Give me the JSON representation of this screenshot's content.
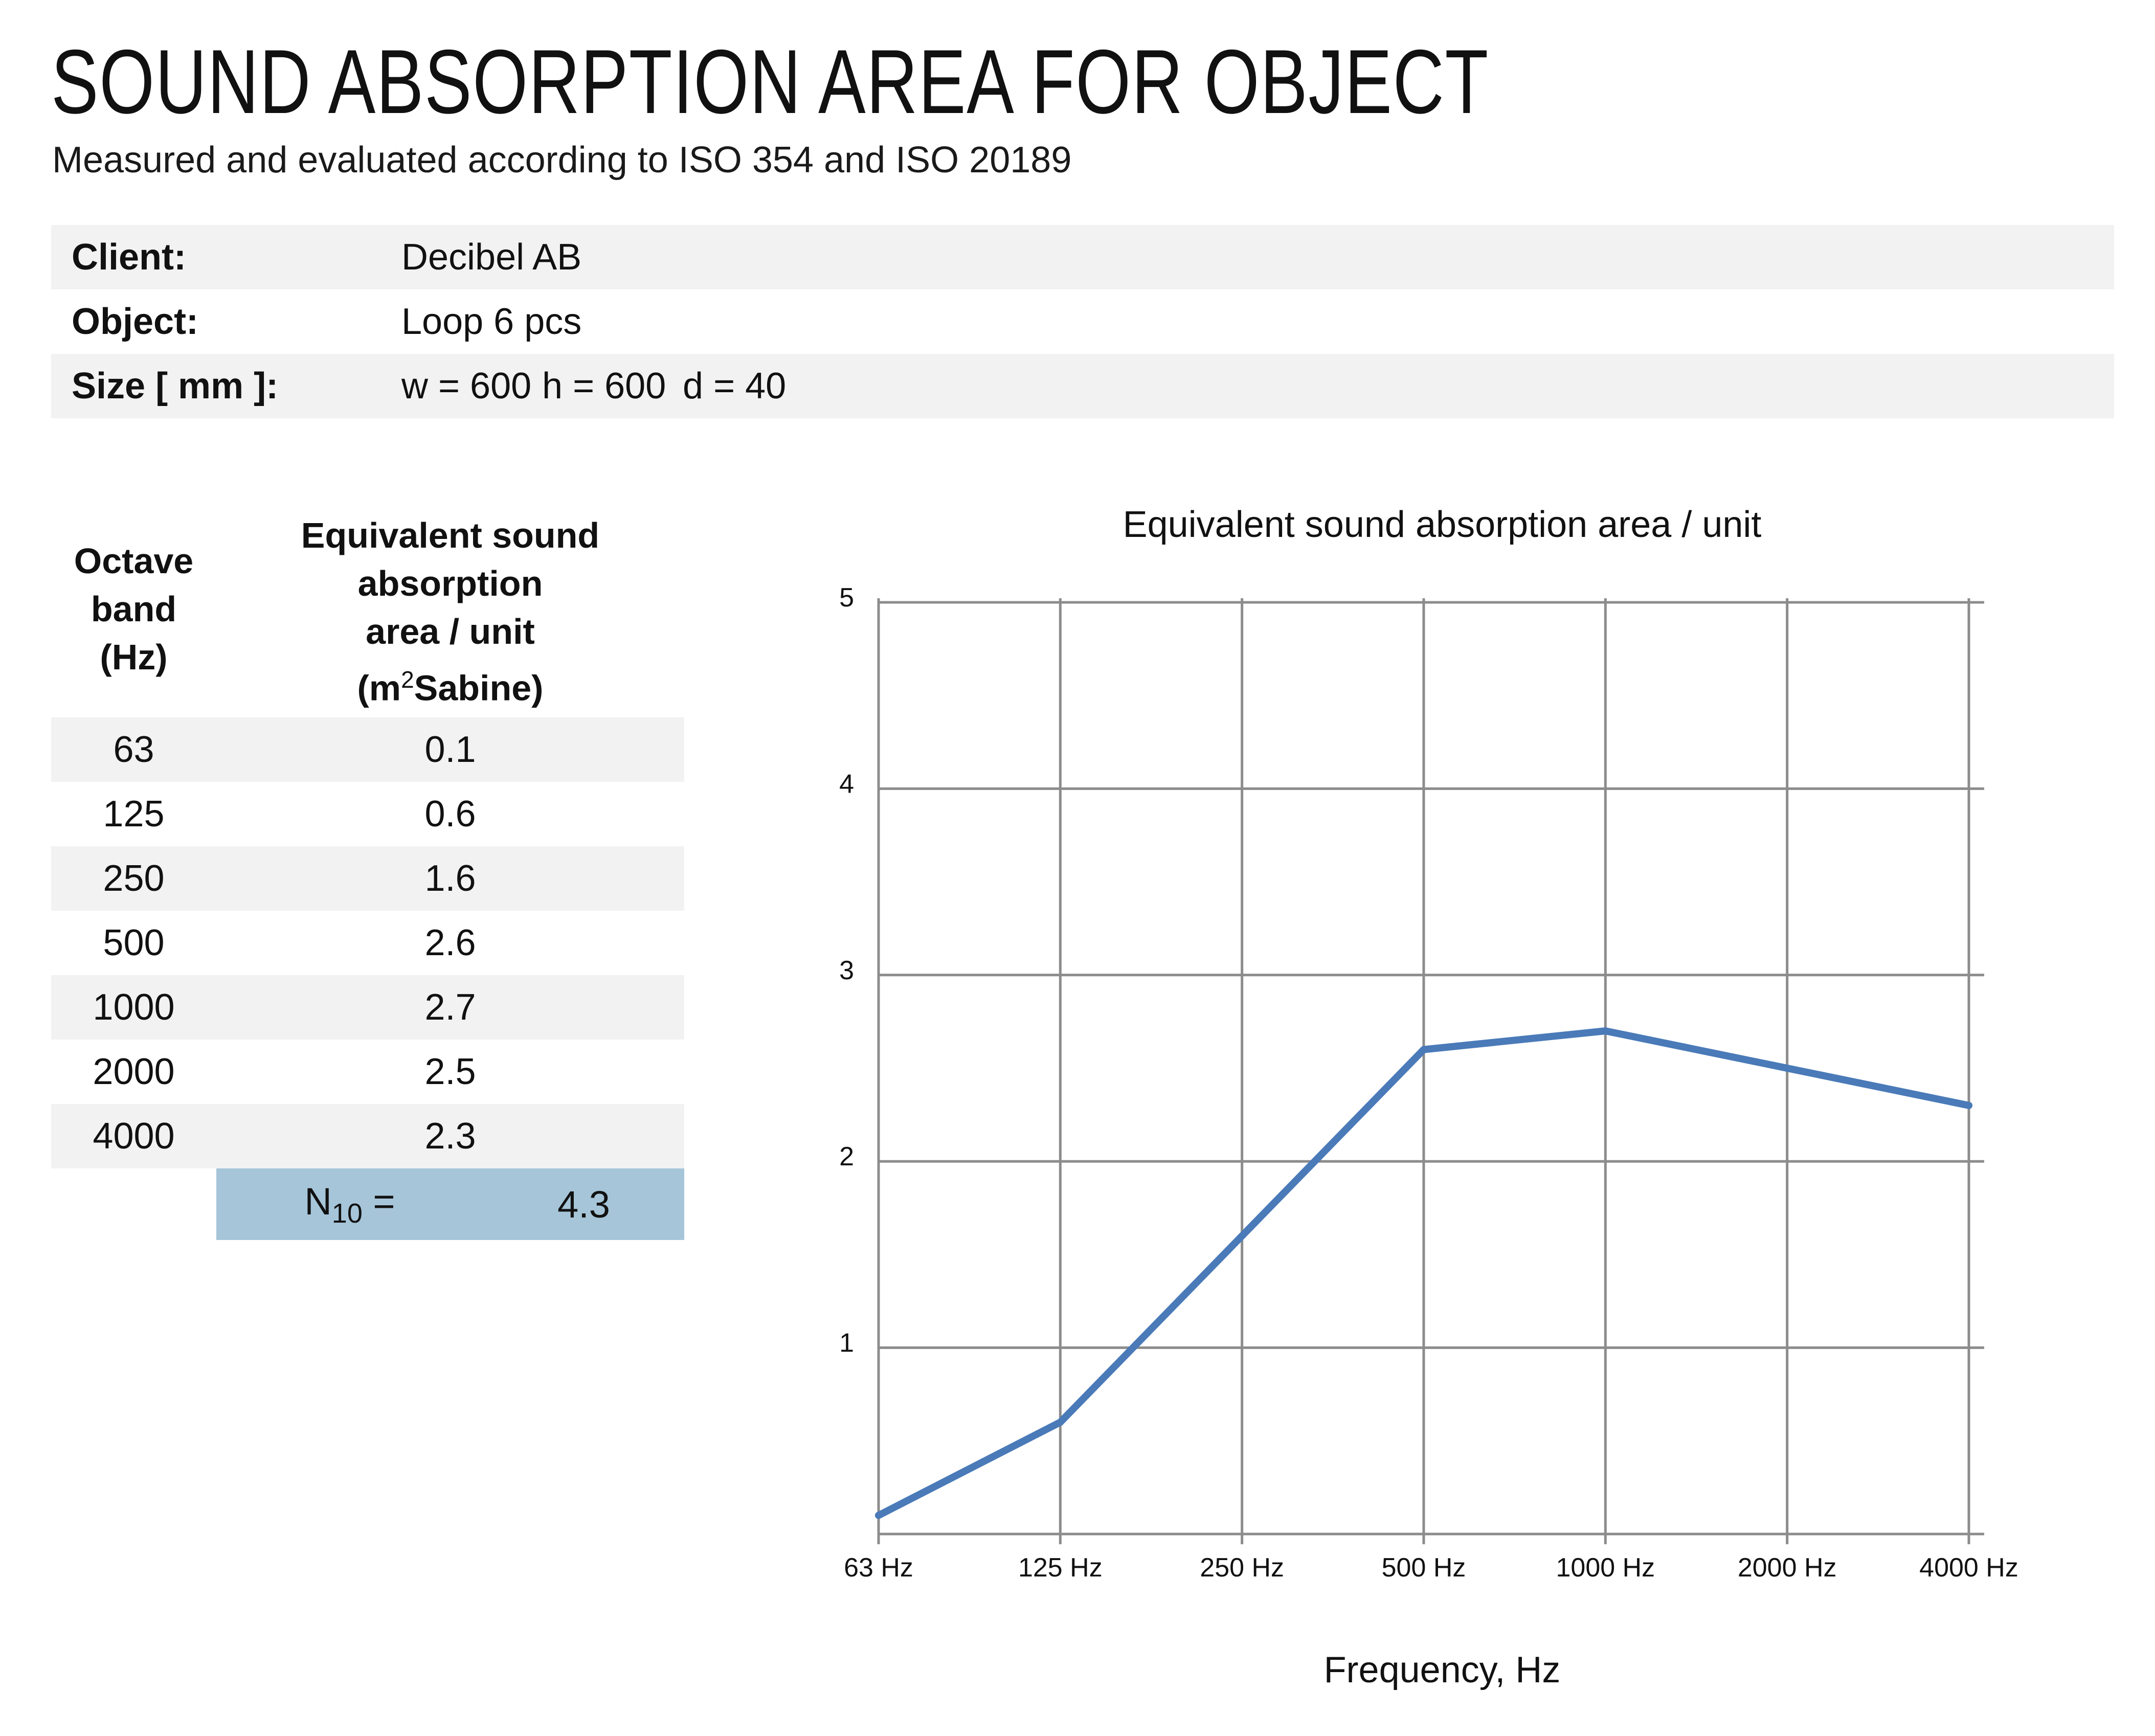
{
  "header": {
    "title": "SOUND ABSORPTION AREA FOR OBJECT",
    "subtitle": "Measured and evaluated according to ISO 354 and ISO 20189"
  },
  "info": {
    "client_label": "Client:",
    "client_value": "Decibel AB",
    "object_label": "Object:",
    "object_value": "Loop 6 pcs",
    "size_label": "Size [ mm ]:",
    "size_w": "w = 600",
    "size_h": "h = 600",
    "size_d": "d = 40"
  },
  "table": {
    "header_band": [
      "Octave",
      "band",
      "(Hz)"
    ],
    "header_area": [
      "Equivalent sound",
      "absorption",
      "area / unit"
    ],
    "header_unit_open": "(m",
    "header_unit_sup": "2",
    "header_unit_rest": "Sabine)",
    "rows": [
      {
        "band": "63",
        "value": "0.1"
      },
      {
        "band": "125",
        "value": "0.6"
      },
      {
        "band": "250",
        "value": "1.6"
      },
      {
        "band": "500",
        "value": "2.6"
      },
      {
        "band": "1000",
        "value": "2.7"
      },
      {
        "band": "2000",
        "value": "2.5"
      },
      {
        "band": "4000",
        "value": "2.3"
      }
    ],
    "n10_label": "N",
    "n10_sub": "10",
    "n10_eq": " =",
    "n10_value": "4.3"
  },
  "chart_data": {
    "type": "line",
    "title": "Equivalent sound absorption area / unit",
    "xlabel": "Frequency, Hz",
    "ylabel": "",
    "categories": [
      "63 Hz",
      "125 Hz",
      "250 Hz",
      "500 Hz",
      "1000 Hz",
      "2000 Hz",
      "4000 Hz"
    ],
    "values": [
      0.1,
      0.6,
      1.6,
      2.6,
      2.7,
      2.5,
      2.3
    ],
    "ylim": [
      0,
      5
    ],
    "yticks": [
      1,
      2,
      3,
      4,
      5
    ],
    "grid": true,
    "line_color": "#4a7ab8",
    "grid_color": "#8c8c8c"
  }
}
